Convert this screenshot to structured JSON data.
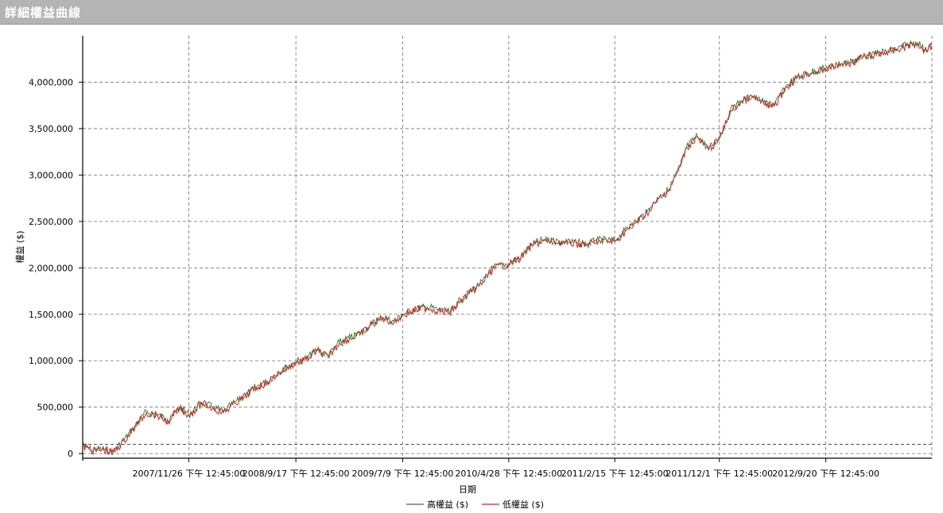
{
  "window": {
    "title": "詳細權益曲線"
  },
  "chart_data": {
    "type": "line",
    "title": "",
    "xlabel": "日期",
    "ylabel": "權益 ($)",
    "ylim": [
      -50000,
      4500000
    ],
    "y_ticks": [
      0,
      500000,
      1000000,
      1500000,
      2000000,
      2500000,
      3000000,
      3500000,
      4000000
    ],
    "y_tick_labels": [
      "0",
      "500,000",
      "1,000,000",
      "1,500,000",
      "2,000,000",
      "2,500,000",
      "3,000,000",
      "3,500,000",
      "4,000,000"
    ],
    "x_ticks": [
      "2007/11/26 下午 12:45:00",
      "2008/9/17 下午 12:45:00",
      "2009/7/9 下午 12:45:00",
      "2010/4/28 下午 12:45:00",
      "2011/2/15 下午 12:45:00",
      "2011/12/1 下午 12:45:00",
      "2012/9/20 下午 12:45:00"
    ],
    "x_range": [
      "2007/2/6",
      "2013/7/10"
    ],
    "grid": true,
    "legend_position": "bottom-center",
    "reference_line": 100000,
    "series": [
      {
        "name": "高權益 ($)",
        "color": "#2e7d32",
        "x": [
          "2007/2/6",
          "2007/3/1",
          "2007/4/1",
          "2007/5/1",
          "2007/6/1",
          "2007/7/1",
          "2007/8/1",
          "2007/9/1",
          "2007/10/1",
          "2007/11/1",
          "2007/11/26",
          "2008/1/1",
          "2008/2/1",
          "2008/3/1",
          "2008/4/1",
          "2008/5/1",
          "2008/6/1",
          "2008/7/1",
          "2008/8/1",
          "2008/9/17",
          "2008/10/15",
          "2008/11/15",
          "2008/12/15",
          "2009/1/15",
          "2009/2/15",
          "2009/3/15",
          "2009/4/15",
          "2009/5/15",
          "2009/6/15",
          "2009/7/9",
          "2009/8/15",
          "2009/9/15",
          "2009/10/15",
          "2009/11/15",
          "2009/12/15",
          "2010/1/15",
          "2010/2/15",
          "2010/3/15",
          "2010/4/28",
          "2010/6/1",
          "2010/7/1",
          "2010/8/1",
          "2010/9/1",
          "2010/10/1",
          "2010/11/1",
          "2010/12/1",
          "2011/1/1",
          "2011/2/15",
          "2011/3/15",
          "2011/4/15",
          "2011/5/15",
          "2011/6/15",
          "2011/7/15",
          "2011/8/15",
          "2011/9/1",
          "2011/10/1",
          "2011/11/1",
          "2011/12/1",
          "2012/1/1",
          "2012/2/1",
          "2012/3/1",
          "2012/4/1",
          "2012/5/1",
          "2012/6/1",
          "2012/7/1",
          "2012/8/1",
          "2012/9/20",
          "2012/11/1",
          "2012/12/1",
          "2013/1/1",
          "2013/2/1",
          "2013/3/1",
          "2013/4/1",
          "2013/5/1",
          "2013/6/1",
          "2013/6/20",
          "2013/7/10"
        ],
        "values": [
          90000,
          40000,
          50000,
          20000,
          150000,
          300000,
          450000,
          420000,
          350000,
          500000,
          420000,
          550000,
          500000,
          450000,
          550000,
          630000,
          720000,
          780000,
          880000,
          990000,
          1020000,
          1120000,
          1050000,
          1200000,
          1250000,
          1300000,
          1400000,
          1470000,
          1420000,
          1500000,
          1560000,
          1580000,
          1550000,
          1520000,
          1650000,
          1750000,
          1850000,
          2000000,
          2050000,
          2120000,
          2250000,
          2300000,
          2290000,
          2280000,
          2270000,
          2260000,
          2300000,
          2290000,
          2400000,
          2500000,
          2600000,
          2750000,
          2850000,
          3100000,
          3300000,
          3420000,
          3280000,
          3400000,
          3700000,
          3800000,
          3850000,
          3780000,
          3750000,
          3950000,
          4050000,
          4100000,
          4150000,
          4200000,
          4220000,
          4280000,
          4300000,
          4330000,
          4350000,
          4400000,
          4430000,
          4350000,
          4400000
        ]
      },
      {
        "name": "低權益 ($)",
        "color": "#c62828",
        "x": [
          "2007/2/6",
          "2007/3/1",
          "2007/4/1",
          "2007/5/1",
          "2007/6/1",
          "2007/7/1",
          "2007/8/1",
          "2007/9/1",
          "2007/10/1",
          "2007/11/1",
          "2007/11/26",
          "2008/1/1",
          "2008/2/1",
          "2008/3/1",
          "2008/4/1",
          "2008/5/1",
          "2008/6/1",
          "2008/7/1",
          "2008/8/1",
          "2008/9/17",
          "2008/10/15",
          "2008/11/15",
          "2008/12/15",
          "2009/1/15",
          "2009/2/15",
          "2009/3/15",
          "2009/4/15",
          "2009/5/15",
          "2009/6/15",
          "2009/7/9",
          "2009/8/15",
          "2009/9/15",
          "2009/10/15",
          "2009/11/15",
          "2009/12/15",
          "2010/1/15",
          "2010/2/15",
          "2010/3/15",
          "2010/4/28",
          "2010/6/1",
          "2010/7/1",
          "2010/8/1",
          "2010/9/1",
          "2010/10/1",
          "2010/11/1",
          "2010/12/1",
          "2011/1/1",
          "2011/2/15",
          "2011/3/15",
          "2011/4/15",
          "2011/5/15",
          "2011/6/15",
          "2011/7/15",
          "2011/8/15",
          "2011/9/1",
          "2011/10/1",
          "2011/11/1",
          "2011/12/1",
          "2012/1/1",
          "2012/2/1",
          "2012/3/1",
          "2012/4/1",
          "2012/5/1",
          "2012/6/1",
          "2012/7/1",
          "2012/8/1",
          "2012/9/20",
          "2012/11/1",
          "2012/12/1",
          "2013/1/1",
          "2013/2/1",
          "2013/3/1",
          "2013/4/1",
          "2013/5/1",
          "2013/6/1",
          "2013/6/20",
          "2013/7/10"
        ],
        "values": [
          80000,
          30000,
          40000,
          10000,
          140000,
          290000,
          440000,
          410000,
          340000,
          490000,
          410000,
          540000,
          490000,
          440000,
          540000,
          620000,
          710000,
          770000,
          870000,
          980000,
          1010000,
          1110000,
          1040000,
          1190000,
          1240000,
          1290000,
          1390000,
          1460000,
          1410000,
          1490000,
          1550000,
          1570000,
          1540000,
          1510000,
          1640000,
          1740000,
          1840000,
          1990000,
          2040000,
          2110000,
          2240000,
          2290000,
          2280000,
          2270000,
          2260000,
          2250000,
          2290000,
          2280000,
          2390000,
          2490000,
          2590000,
          2740000,
          2840000,
          3090000,
          3290000,
          3410000,
          3270000,
          3390000,
          3690000,
          3790000,
          3840000,
          3770000,
          3740000,
          3940000,
          4040000,
          4090000,
          4140000,
          4190000,
          4210000,
          4270000,
          4290000,
          4320000,
          4340000,
          4390000,
          4420000,
          4340000,
          4390000
        ]
      }
    ]
  }
}
